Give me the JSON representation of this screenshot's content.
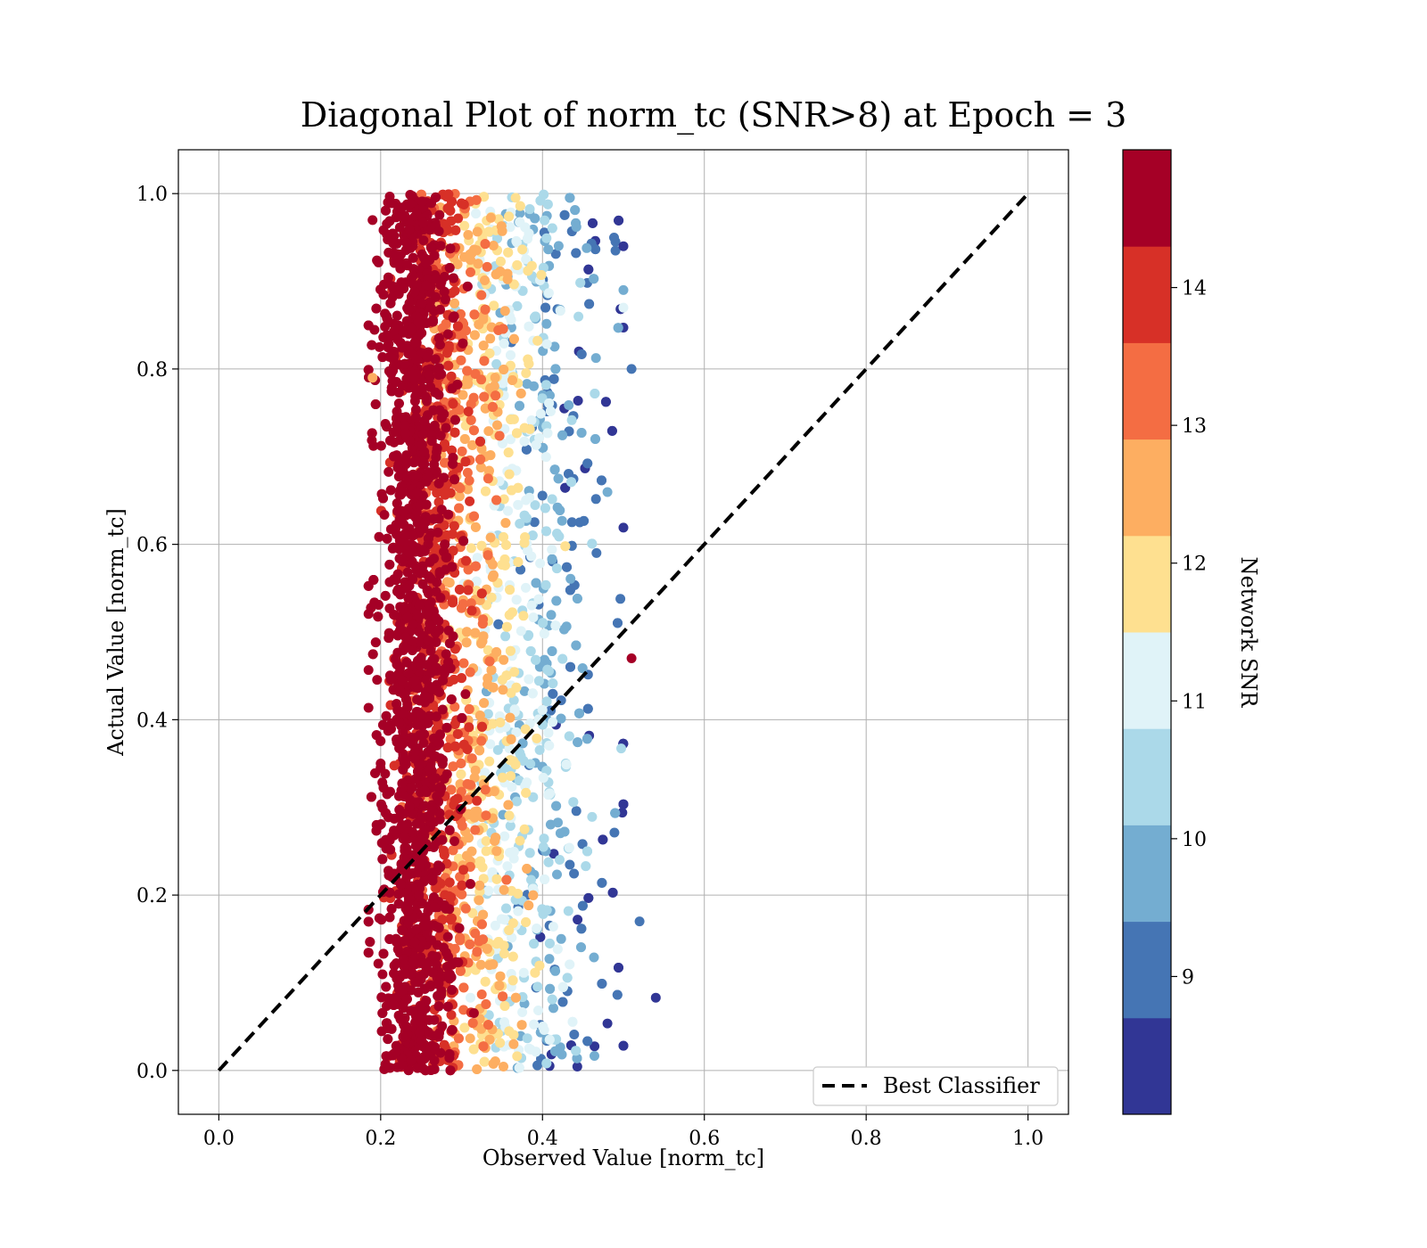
{
  "chart_data": {
    "type": "scatter",
    "title": "Diagonal Plot of norm_tc (SNR>8) at Epoch = 3",
    "xlabel": "Observed Value [norm_tc]",
    "ylabel": "Actual Value [norm_tc]",
    "xlim": [
      -0.05,
      1.05
    ],
    "ylim": [
      -0.05,
      1.05
    ],
    "xticks": [
      "0.0",
      "0.2",
      "0.4",
      "0.6",
      "0.8",
      "1.0"
    ],
    "yticks": [
      "0.0",
      "0.2",
      "0.4",
      "0.6",
      "0.8",
      "1.0"
    ],
    "grid": true,
    "reference_line": {
      "label": "Best Classifier",
      "x": [
        0.0,
        1.0
      ],
      "y": [
        0.0,
        1.0
      ],
      "style": "dashed",
      "color": "#000000"
    },
    "legend": {
      "location": "lower-right",
      "entries": [
        "Best Classifier"
      ]
    },
    "colorbar": {
      "label": "Network SNR",
      "min": 8.0,
      "max": 15.0,
      "ticks": [
        "9",
        "10",
        "11",
        "12",
        "13",
        "14"
      ],
      "tick_values": [
        9,
        10,
        11,
        12,
        13,
        14
      ],
      "bands": [
        "#313695",
        "#4575b4",
        "#74add1",
        "#abd9e9",
        "#e0f3f8",
        "#fee090",
        "#fdae61",
        "#f46d43",
        "#d73027",
        "#a50026"
      ]
    },
    "point_distribution": {
      "description_x_range": [
        0.18,
        0.55
      ],
      "y_range": [
        0.0,
        1.0
      ],
      "trend": "high SNR points cluster near x=0.2-0.3; lower SNR points spread toward x=0.35-0.5",
      "sample_points": [
        {
          "x": 0.2,
          "y": 0.35,
          "snr": 14.8
        },
        {
          "x": 0.54,
          "y": 0.083,
          "snr": 8.3
        },
        {
          "x": 0.52,
          "y": 0.17,
          "snr": 9.2
        },
        {
          "x": 0.51,
          "y": 0.8,
          "snr": 9.0
        },
        {
          "x": 0.51,
          "y": 0.47,
          "snr": 14.5
        },
        {
          "x": 0.5,
          "y": 0.87,
          "snr": 11.2
        },
        {
          "x": 0.5,
          "y": 0.89,
          "snr": 9.5
        },
        {
          "x": 0.5,
          "y": 0.94,
          "snr": 8.6
        },
        {
          "x": 0.19,
          "y": 0.79,
          "snr": 12.6
        }
      ]
    }
  }
}
